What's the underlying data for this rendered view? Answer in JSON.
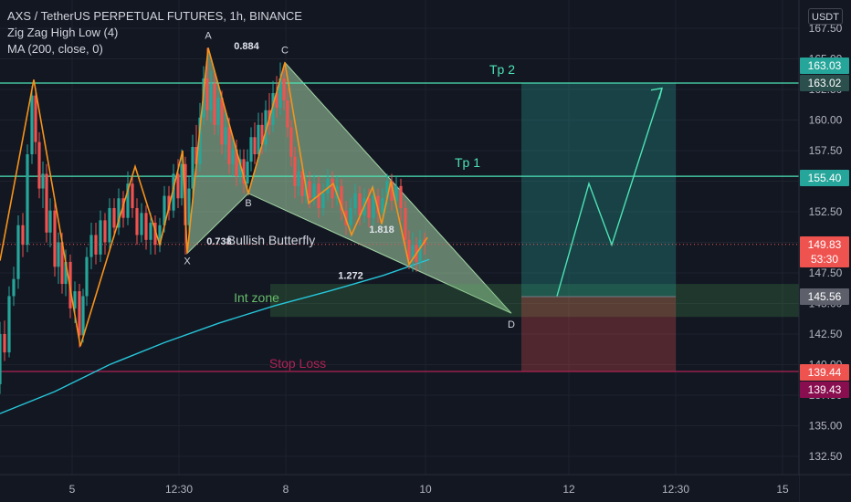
{
  "header": {
    "title": "AXS / TetherUS PERPETUAL FUTURES, 1h, BINANCE",
    "indicators": [
      "Zig Zag High Low (4)",
      "MA (200, close, 0)"
    ],
    "currency": "USDT"
  },
  "colors": {
    "background": "#131722",
    "up": "#26a69a",
    "down": "#ef5350",
    "zigzag": "#f7931a",
    "ma": "#26c6da",
    "level": "#4de3b5",
    "stop": "#b02255",
    "pattern_fill": "#a5d6a7",
    "arrow": "#4de3b5"
  },
  "chart_data": {
    "type": "candlestick",
    "y_axis": {
      "ticks": [
        "167.50",
        "165.00",
        "162.50",
        "160.00",
        "157.50",
        "155.00",
        "152.50",
        "150.00",
        "147.50",
        "145.00",
        "142.50",
        "140.00",
        "137.50",
        "135.00",
        "132.50"
      ],
      "range": [
        131.0,
        168.0
      ]
    },
    "x_axis": {
      "ticks": [
        "5",
        "12:30",
        "8",
        "10",
        "12",
        "12:30",
        "15"
      ]
    },
    "price_labels": [
      {
        "value": "163.03",
        "color": "#26a69a"
      },
      {
        "value": "163.02",
        "color": "#2a4f4c"
      },
      {
        "value": "155.40",
        "color": "#26a69a"
      },
      {
        "value": "149.83",
        "color": "#ef5350",
        "sub": "53:30"
      },
      {
        "value": "145.56",
        "color": "#5d606b"
      },
      {
        "value": "139.44",
        "color": "#ef5350"
      },
      {
        "value": "139.43",
        "color": "#880e4f"
      }
    ],
    "levels": [
      {
        "label": "Tp 2",
        "price": 163.02
      },
      {
        "label": "Tp 1",
        "price": 155.4
      },
      {
        "label": "Stop Loss",
        "price": 139.44
      }
    ],
    "last_price": 149.83,
    "entry_price": 145.56,
    "int_zone": {
      "label": "Int zone",
      "top": 146.6,
      "bottom": 143.9
    },
    "pattern": {
      "name": "Bullish Butterfly",
      "points": [
        {
          "label": "X",
          "t": 205,
          "price": 149.1
        },
        {
          "label": "A",
          "t": 228,
          "price": 165.9
        },
        {
          "label": "B",
          "t": 272,
          "price": 154.0
        },
        {
          "label": "C",
          "t": 312,
          "price": 164.7
        },
        {
          "label": "D",
          "t": 560,
          "price": 144.2
        }
      ],
      "ratios": [
        {
          "value": "0.884",
          "t": 270,
          "price": 165.8
        },
        {
          "value": "0.738",
          "t": 240,
          "price": 149.8
        },
        {
          "value": "1.818",
          "t": 418,
          "price": 150.8
        },
        {
          "value": "1.272",
          "t": 384,
          "price": 147.0
        }
      ]
    },
    "zigzag": [
      [
        0,
        148.5
      ],
      [
        37,
        163.3
      ],
      [
        88,
        141.5
      ],
      [
        148,
        156.2
      ],
      [
        175,
        149.8
      ],
      [
        200,
        157.5
      ],
      [
        205,
        149.1
      ],
      [
        228,
        165.9
      ],
      [
        272,
        154.0
      ],
      [
        312,
        164.7
      ],
      [
        338,
        153.2
      ],
      [
        365,
        154.8
      ],
      [
        385,
        150.6
      ],
      [
        408,
        154.5
      ],
      [
        418,
        151.5
      ],
      [
        428,
        155.0
      ],
      [
        448,
        148.2
      ],
      [
        468,
        150.4
      ]
    ],
    "ma": [
      [
        0,
        136.0
      ],
      [
        60,
        137.8
      ],
      [
        120,
        140.0
      ],
      [
        180,
        141.8
      ],
      [
        240,
        143.4
      ],
      [
        300,
        144.8
      ],
      [
        360,
        146.0
      ],
      [
        420,
        147.3
      ],
      [
        470,
        148.6
      ]
    ],
    "candles": [
      [
        0,
        138.4,
        142.5,
        137.6,
        143.5
      ],
      [
        5,
        142.5,
        141.0,
        140.3,
        143.6
      ],
      [
        10,
        141.0,
        145.6,
        140.6,
        146.4
      ],
      [
        15,
        145.6,
        147.0,
        144.8,
        148.0
      ],
      [
        20,
        147.0,
        151.4,
        146.2,
        152.2
      ],
      [
        25,
        151.4,
        149.8,
        148.8,
        152.4
      ],
      [
        30,
        149.8,
        157.2,
        149.2,
        158.0
      ],
      [
        35,
        157.2,
        162.0,
        156.4,
        162.8
      ],
      [
        39,
        162.0,
        158.2,
        157.2,
        162.6
      ],
      [
        43,
        158.2,
        154.4,
        153.6,
        159.0
      ],
      [
        47,
        154.4,
        155.6,
        152.8,
        156.6
      ],
      [
        51,
        155.6,
        150.8,
        150.0,
        156.4
      ],
      [
        55,
        150.8,
        152.6,
        149.6,
        153.6
      ],
      [
        60,
        152.6,
        148.0,
        147.2,
        153.4
      ],
      [
        64,
        148.0,
        150.0,
        146.6,
        150.8
      ],
      [
        68,
        150.0,
        146.6,
        145.8,
        150.8
      ],
      [
        72,
        146.6,
        148.4,
        145.6,
        149.4
      ],
      [
        77,
        148.4,
        144.6,
        143.8,
        149.0
      ],
      [
        82,
        144.6,
        146.0,
        143.4,
        146.8
      ],
      [
        87,
        146.0,
        142.4,
        141.4,
        146.6
      ],
      [
        91,
        142.4,
        145.6,
        141.8,
        146.2
      ],
      [
        95,
        145.6,
        148.8,
        144.8,
        149.6
      ],
      [
        100,
        148.8,
        150.6,
        147.8,
        151.6
      ],
      [
        105,
        150.6,
        149.0,
        148.2,
        151.6
      ],
      [
        110,
        149.0,
        151.8,
        148.4,
        152.6
      ],
      [
        115,
        151.8,
        150.0,
        149.0,
        152.4
      ],
      [
        120,
        150.0,
        152.8,
        149.4,
        153.6
      ],
      [
        125,
        152.8,
        151.2,
        150.4,
        153.6
      ],
      [
        130,
        151.2,
        153.6,
        150.6,
        154.4
      ],
      [
        135,
        153.6,
        152.0,
        151.2,
        154.2
      ],
      [
        140,
        152.0,
        154.8,
        151.4,
        155.8
      ],
      [
        145,
        154.8,
        152.8,
        152.0,
        155.6
      ],
      [
        150,
        152.8,
        150.6,
        149.8,
        153.6
      ],
      [
        155,
        150.6,
        152.4,
        150.0,
        153.2
      ],
      [
        160,
        152.4,
        150.2,
        149.4,
        153.0
      ],
      [
        165,
        150.2,
        151.6,
        149.0,
        152.4
      ],
      [
        170,
        151.6,
        149.8,
        149.0,
        152.2
      ],
      [
        175,
        149.8,
        151.4,
        149.2,
        152.0
      ],
      [
        180,
        151.4,
        153.8,
        150.8,
        154.6
      ],
      [
        185,
        153.8,
        152.6,
        151.8,
        154.6
      ],
      [
        190,
        152.6,
        155.6,
        152.0,
        156.4
      ],
      [
        195,
        155.6,
        153.6,
        152.8,
        156.8
      ],
      [
        199,
        153.6,
        156.4,
        153.0,
        157.6
      ],
      [
        203,
        156.4,
        151.4,
        149.0,
        157.0
      ],
      [
        207,
        151.4,
        154.4,
        150.6,
        155.4
      ],
      [
        211,
        154.4,
        157.8,
        153.6,
        158.8
      ],
      [
        215,
        157.8,
        156.4,
        155.4,
        159.6
      ],
      [
        219,
        156.4,
        160.2,
        155.8,
        161.4
      ],
      [
        223,
        160.2,
        163.4,
        159.6,
        164.4
      ],
      [
        227,
        163.4,
        160.8,
        160.0,
        165.9
      ],
      [
        231,
        160.8,
        163.0,
        159.8,
        164.0
      ],
      [
        235,
        163.0,
        159.6,
        158.8,
        163.8
      ],
      [
        239,
        159.6,
        161.8,
        158.8,
        162.8
      ],
      [
        243,
        161.8,
        158.0,
        157.2,
        162.4
      ],
      [
        247,
        158.0,
        159.4,
        156.8,
        160.6
      ],
      [
        251,
        159.4,
        156.4,
        155.6,
        160.2
      ],
      [
        255,
        156.4,
        157.6,
        155.4,
        158.6
      ],
      [
        259,
        157.6,
        155.4,
        154.6,
        158.4
      ],
      [
        263,
        155.4,
        156.8,
        154.8,
        157.6
      ],
      [
        267,
        156.8,
        154.8,
        154.0,
        157.6
      ],
      [
        271,
        154.8,
        156.6,
        154.2,
        157.6
      ],
      [
        275,
        156.6,
        158.6,
        155.8,
        159.4
      ],
      [
        279,
        158.6,
        157.2,
        156.4,
        159.8
      ],
      [
        283,
        157.2,
        159.6,
        156.6,
        160.6
      ],
      [
        287,
        159.6,
        158.0,
        157.2,
        160.6
      ],
      [
        291,
        158.0,
        160.8,
        157.4,
        161.6
      ],
      [
        295,
        160.8,
        159.6,
        158.8,
        162.2
      ],
      [
        299,
        159.6,
        162.2,
        159.0,
        163.2
      ],
      [
        303,
        162.2,
        161.0,
        160.2,
        163.6
      ],
      [
        307,
        161.0,
        163.4,
        160.4,
        164.7
      ],
      [
        311,
        163.4,
        161.6,
        160.8,
        164.2
      ],
      [
        315,
        161.6,
        159.4,
        158.6,
        162.6
      ],
      [
        319,
        159.4,
        157.0,
        156.2,
        160.0
      ],
      [
        323,
        157.0,
        154.6,
        153.6,
        157.8
      ],
      [
        327,
        154.6,
        155.8,
        153.8,
        156.8
      ],
      [
        331,
        155.8,
        153.8,
        153.2,
        156.6
      ],
      [
        335,
        153.8,
        155.0,
        153.2,
        155.8
      ],
      [
        339,
        155.0,
        153.6,
        152.8,
        155.8
      ],
      [
        344,
        153.6,
        154.8,
        153.0,
        155.6
      ],
      [
        349,
        154.8,
        152.8,
        152.0,
        155.4
      ],
      [
        354,
        152.8,
        154.0,
        152.2,
        154.8
      ],
      [
        359,
        154.0,
        155.2,
        153.4,
        156.0
      ],
      [
        364,
        155.2,
        153.6,
        152.8,
        155.8
      ],
      [
        369,
        153.6,
        154.6,
        153.0,
        155.4
      ],
      [
        374,
        154.6,
        152.6,
        151.8,
        155.2
      ],
      [
        379,
        152.6,
        151.4,
        150.6,
        153.4
      ],
      [
        384,
        151.4,
        152.8,
        150.8,
        153.6
      ],
      [
        389,
        152.8,
        154.0,
        152.2,
        154.8
      ],
      [
        394,
        154.0,
        152.2,
        151.4,
        154.6
      ],
      [
        399,
        152.2,
        153.6,
        151.6,
        154.4
      ],
      [
        404,
        153.6,
        152.0,
        151.2,
        154.4
      ],
      [
        409,
        152.0,
        153.8,
        151.4,
        154.6
      ],
      [
        414,
        153.8,
        152.4,
        151.6,
        154.4
      ],
      [
        419,
        152.4,
        153.6,
        151.6,
        154.4
      ],
      [
        424,
        153.6,
        155.0,
        153.0,
        155.6
      ],
      [
        429,
        155.0,
        153.4,
        152.6,
        155.6
      ],
      [
        434,
        153.4,
        154.6,
        152.8,
        155.4
      ],
      [
        439,
        154.6,
        152.8,
        151.8,
        155.2
      ],
      [
        444,
        152.8,
        150.2,
        149.4,
        153.4
      ],
      [
        448,
        150.2,
        148.6,
        147.8,
        151.0
      ],
      [
        452,
        148.6,
        149.8,
        147.6,
        150.8
      ],
      [
        456,
        149.8,
        148.4,
        147.6,
        150.4
      ],
      [
        460,
        148.4,
        150.2,
        147.8,
        151.0
      ],
      [
        465,
        150.2,
        149.83,
        149.0,
        150.8
      ]
    ],
    "projection": [
      [
        610,
        145.6
      ],
      [
        645,
        154.8
      ],
      [
        670,
        149.8
      ],
      [
        725,
        162.6
      ]
    ]
  }
}
